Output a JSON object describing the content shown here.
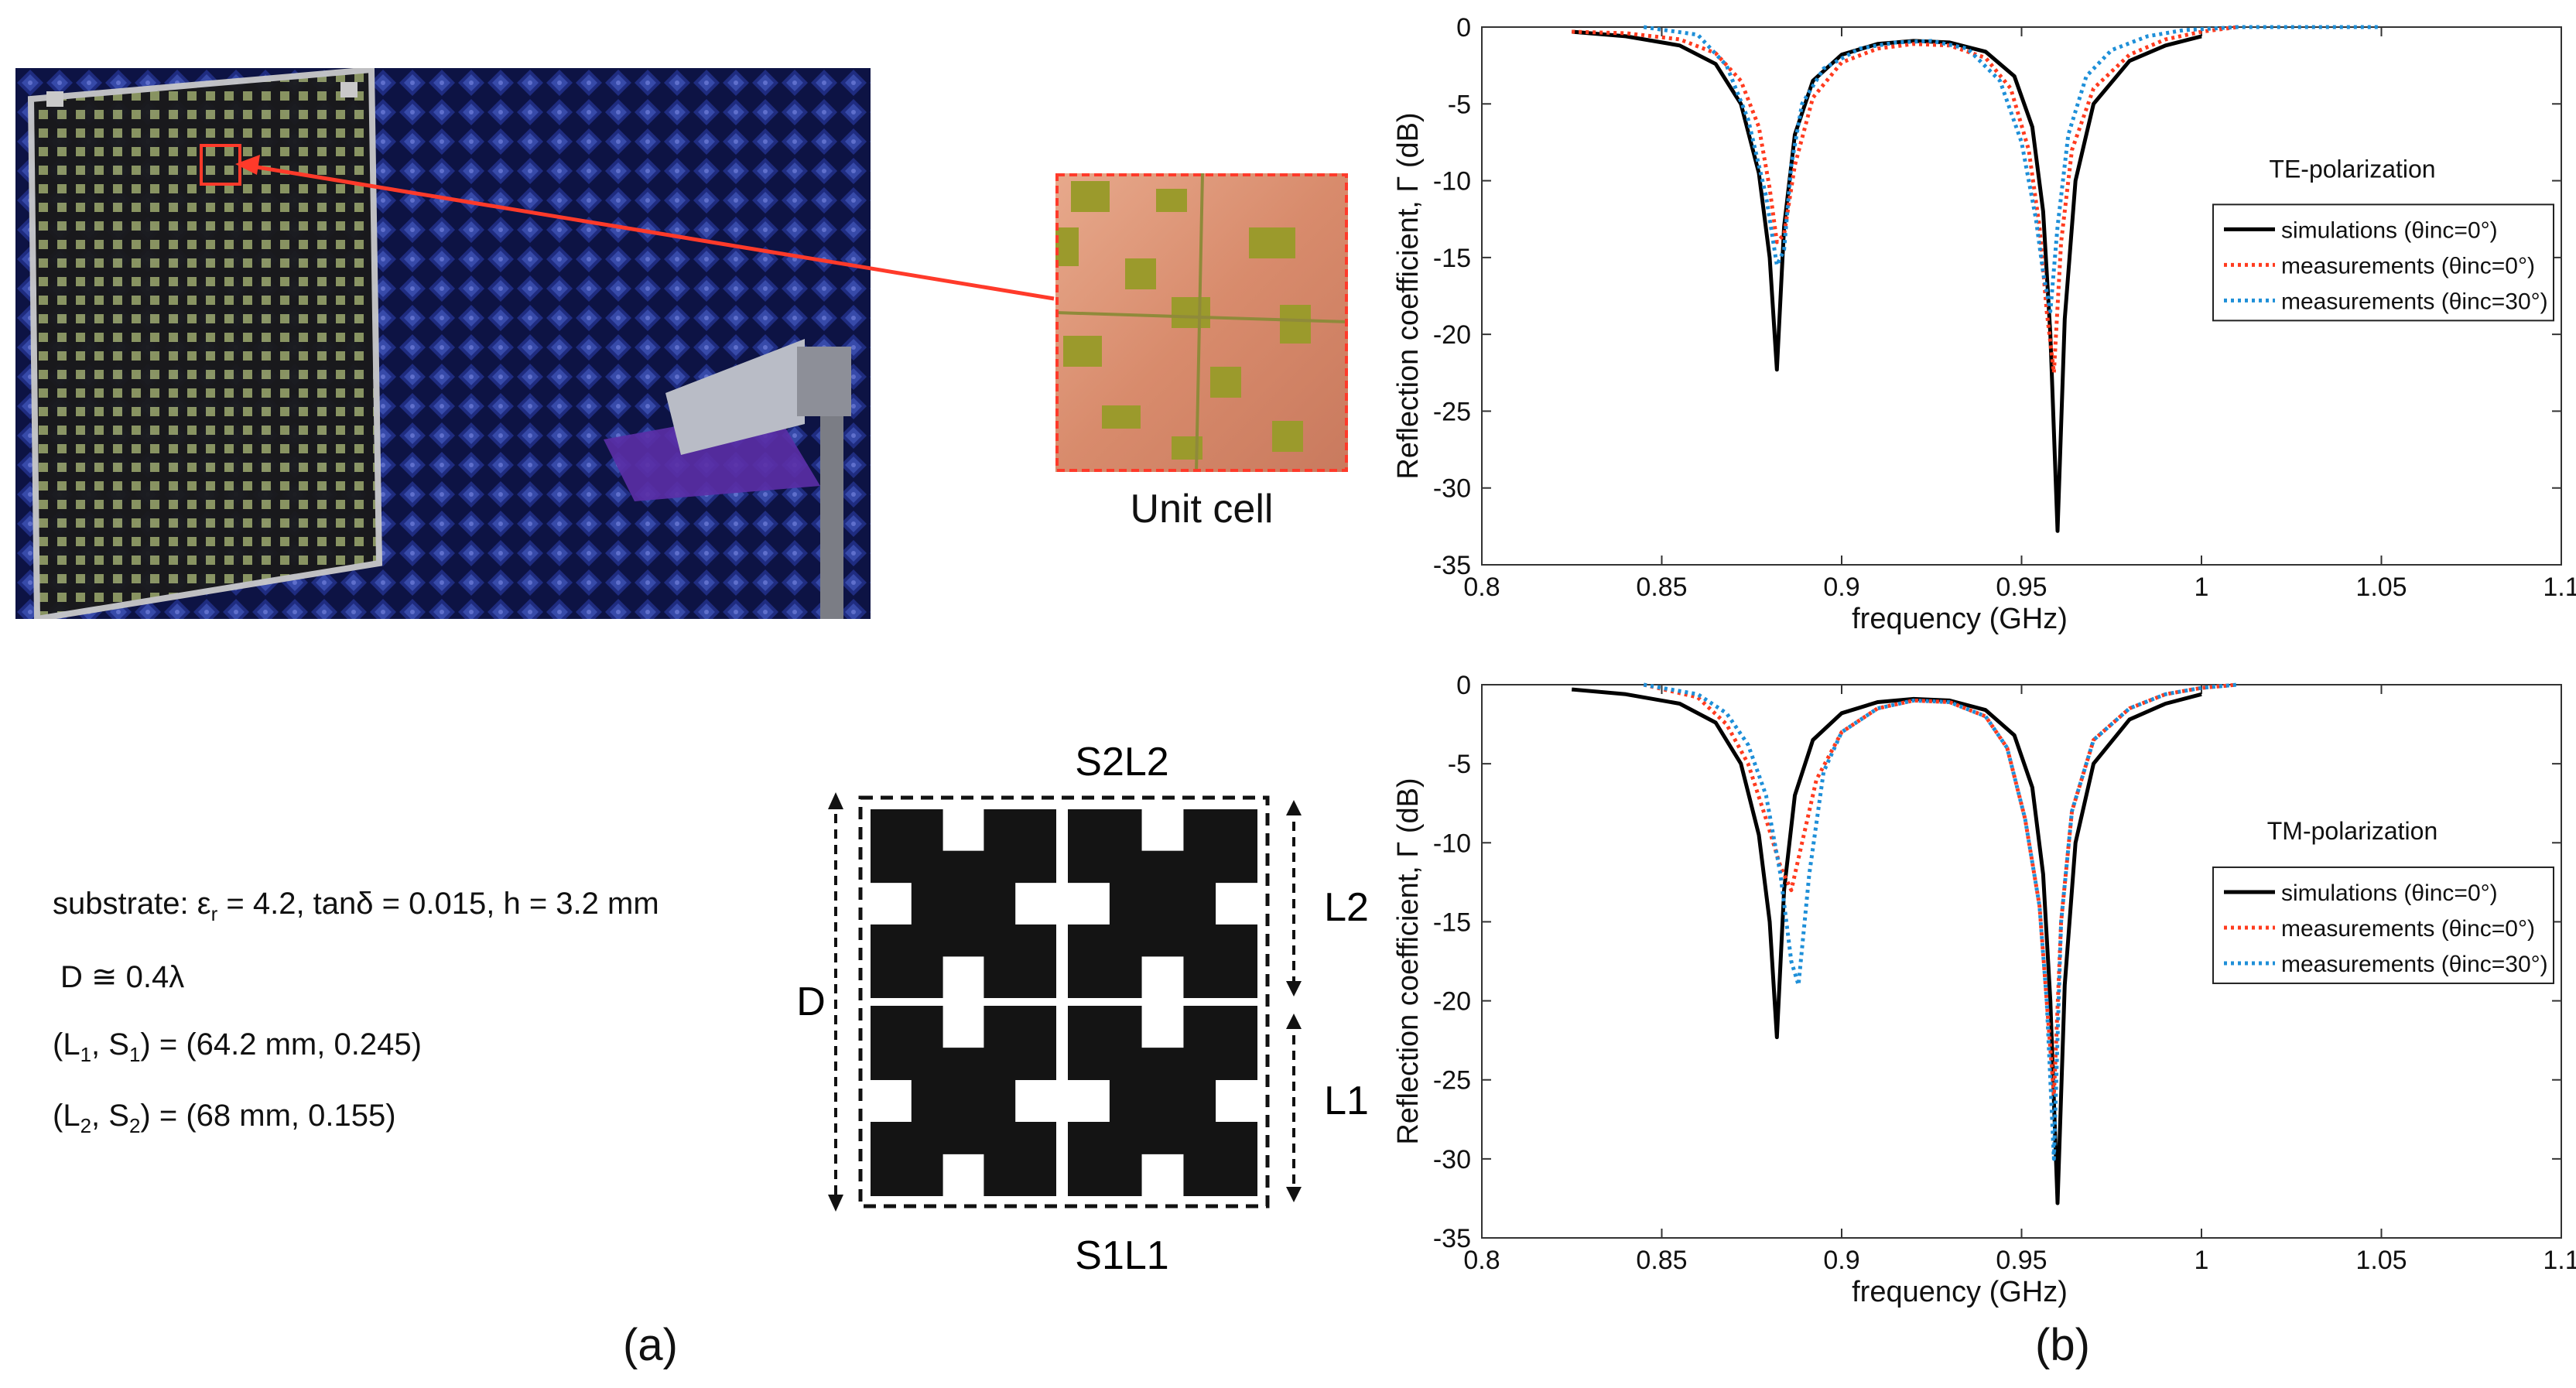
{
  "figure": {
    "unit_cell_caption": "Unit cell",
    "params": {
      "substrate": "substrate: εr = 4.2, tanδ = 0.015, h = 3.2 mm",
      "D": "D ≅ 0.4λ",
      "L1S1": "(L1, S1) = (64.2 mm, 0.245)",
      "L2S2": "(L2, S2) = (68 mm, 0.155)"
    },
    "geometry": {
      "top": "S2L2",
      "bottom": "S1L1",
      "D": "D",
      "L2": "L2",
      "L1": "L1"
    },
    "panel_a": "(a)",
    "panel_b": "(b)"
  },
  "colors": {
    "simulation": "#000000",
    "measure0": "#ff3b1f",
    "measure30": "#1e8fd8"
  },
  "chart_data": [
    {
      "type": "line",
      "title": "TE-polarization",
      "xlabel": "frequency (GHz)",
      "ylabel": "Reflection coefficient, Γ (dB)",
      "xlim": [
        0.8,
        1.1
      ],
      "ylim": [
        -35,
        0
      ],
      "xticks": [
        0.8,
        0.85,
        0.9,
        0.95,
        1,
        1.05,
        1.1
      ],
      "yticks": [
        0,
        -5,
        -10,
        -15,
        -20,
        -25,
        -30,
        -35
      ],
      "legend_position": "right",
      "series": [
        {
          "name": "simulations (θinc=0°)",
          "style": "solid",
          "x": [
            0.825,
            0.84,
            0.855,
            0.865,
            0.872,
            0.877,
            0.88,
            0.882,
            0.884,
            0.887,
            0.892,
            0.9,
            0.91,
            0.92,
            0.93,
            0.94,
            0.948,
            0.953,
            0.956,
            0.958,
            0.96,
            0.962,
            0.965,
            0.97,
            0.98,
            0.99,
            1.0
          ],
          "y": [
            -0.3,
            -0.6,
            -1.2,
            -2.4,
            -5,
            -9.5,
            -15,
            -22.3,
            -13,
            -7,
            -3.5,
            -1.8,
            -1.1,
            -0.9,
            -1,
            -1.6,
            -3.2,
            -6.5,
            -12,
            -20,
            -32.8,
            -19,
            -10,
            -5,
            -2.2,
            -1.2,
            -0.6
          ]
        },
        {
          "name": "measurements (θinc=0°)",
          "style": "dotted",
          "x": [
            0.825,
            0.84,
            0.855,
            0.865,
            0.872,
            0.877,
            0.88,
            0.882,
            0.884,
            0.887,
            0.892,
            0.9,
            0.91,
            0.92,
            0.93,
            0.94,
            0.947,
            0.952,
            0.955,
            0.957,
            0.959,
            0.961,
            0.964,
            0.97,
            0.98,
            0.99,
            1.0,
            1.01
          ],
          "y": [
            -0.3,
            -0.4,
            -0.8,
            -1.7,
            -3.5,
            -6.5,
            -10.5,
            -14,
            -13.5,
            -9,
            -4.6,
            -2.3,
            -1.4,
            -1.1,
            -1.2,
            -2,
            -4,
            -8,
            -13,
            -18.5,
            -22.5,
            -14,
            -8,
            -4,
            -1.8,
            -0.8,
            -0.3,
            0
          ]
        },
        {
          "name": "measurements (θinc=30°)",
          "style": "dotted",
          "x": [
            0.845,
            0.86,
            0.868,
            0.874,
            0.879,
            0.882,
            0.884,
            0.886,
            0.889,
            0.895,
            0.905,
            0.915,
            0.925,
            0.935,
            0.944,
            0.95,
            0.954,
            0.956,
            0.958,
            0.96,
            0.963,
            0.968,
            0.975,
            0.985,
            0.995,
            1.01,
            1.05
          ],
          "y": [
            0,
            -0.5,
            -2.5,
            -6,
            -11,
            -15.5,
            -14.5,
            -9,
            -5,
            -2.7,
            -1.4,
            -1,
            -0.9,
            -1.4,
            -3.5,
            -7.5,
            -12.5,
            -16,
            -18.5,
            -13,
            -7,
            -3.2,
            -1.5,
            -0.6,
            -0.2,
            0,
            0
          ]
        }
      ]
    },
    {
      "type": "line",
      "title": "TM-polarization",
      "xlabel": "frequency (GHz)",
      "ylabel": "Reflection coefficient, Γ (dB)",
      "xlim": [
        0.8,
        1.1
      ],
      "ylim": [
        -35,
        0
      ],
      "xticks": [
        0.8,
        0.85,
        0.9,
        0.95,
        1,
        1.05,
        1.1
      ],
      "yticks": [
        0,
        -5,
        -10,
        -15,
        -20,
        -25,
        -30,
        -35
      ],
      "legend_position": "right",
      "series": [
        {
          "name": "simulations (θinc=0°)",
          "style": "solid",
          "x": [
            0.825,
            0.84,
            0.855,
            0.865,
            0.872,
            0.877,
            0.88,
            0.882,
            0.884,
            0.887,
            0.892,
            0.9,
            0.91,
            0.92,
            0.93,
            0.94,
            0.948,
            0.953,
            0.956,
            0.958,
            0.96,
            0.962,
            0.965,
            0.97,
            0.98,
            0.99,
            1.0
          ],
          "y": [
            -0.3,
            -0.6,
            -1.2,
            -2.4,
            -5,
            -9.5,
            -15,
            -22.3,
            -13,
            -7,
            -3.5,
            -1.8,
            -1.1,
            -0.9,
            -1,
            -1.6,
            -3.2,
            -6.5,
            -12,
            -20,
            -32.8,
            -19,
            -10,
            -5,
            -2.2,
            -1.2,
            -0.6
          ]
        },
        {
          "name": "measurements (θinc=0°)",
          "style": "dotted",
          "x": [
            0.845,
            0.86,
            0.868,
            0.874,
            0.879,
            0.883,
            0.886,
            0.889,
            0.893,
            0.9,
            0.91,
            0.92,
            0.93,
            0.94,
            0.946,
            0.951,
            0.955,
            0.957,
            0.959,
            0.961,
            0.964,
            0.97,
            0.98,
            0.99,
            1.0,
            1.01
          ],
          "y": [
            0,
            -0.8,
            -2.5,
            -5,
            -8.5,
            -11.5,
            -13,
            -10,
            -6,
            -3,
            -1.5,
            -1,
            -1.1,
            -2,
            -4,
            -8.5,
            -14,
            -20,
            -26,
            -15,
            -8,
            -3.5,
            -1.5,
            -0.6,
            -0.2,
            0
          ]
        },
        {
          "name": "measurements (θinc=30°)",
          "style": "dotted",
          "x": [
            0.845,
            0.86,
            0.868,
            0.874,
            0.879,
            0.883,
            0.886,
            0.888,
            0.891,
            0.895,
            0.9,
            0.91,
            0.92,
            0.93,
            0.94,
            0.946,
            0.951,
            0.955,
            0.957,
            0.959,
            0.961,
            0.964,
            0.97,
            0.98,
            0.99,
            1.0,
            1.01
          ],
          "y": [
            0,
            -0.6,
            -1.8,
            -3.8,
            -7,
            -12,
            -17.5,
            -19,
            -12,
            -5.5,
            -3,
            -1.5,
            -1,
            -1.1,
            -2,
            -4,
            -8.5,
            -14,
            -20,
            -30,
            -15,
            -8,
            -3.5,
            -1.5,
            -0.6,
            -0.2,
            0
          ]
        }
      ]
    }
  ]
}
